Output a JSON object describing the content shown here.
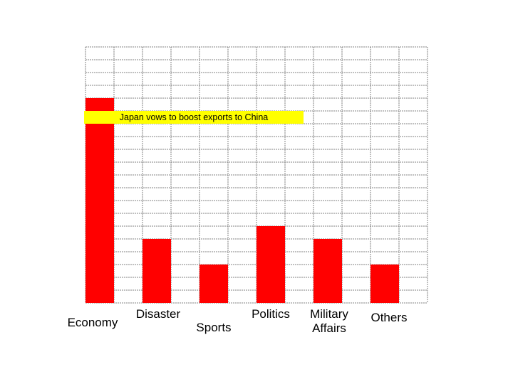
{
  "chart_data": {
    "type": "bar",
    "categories": [
      "Economy",
      "Disaster",
      "Sports",
      "Politics",
      "Military Affairs",
      "Others"
    ],
    "category_lines": [
      [
        "Economy"
      ],
      [
        "Disaster"
      ],
      [
        "Sports"
      ],
      [
        "Politics"
      ],
      [
        "Military",
        "Affairs"
      ],
      [
        "Others"
      ]
    ],
    "values": [
      16,
      5,
      3,
      6,
      5,
      3
    ],
    "ylim": [
      0,
      20
    ],
    "grid": true,
    "title": "",
    "xlabel": "",
    "ylabel": "",
    "annotation": "Japan vows to boost exports to China",
    "colors": {
      "bar": "#ff0000",
      "annotation_background": "#ffff00",
      "grid": "#808080"
    }
  }
}
